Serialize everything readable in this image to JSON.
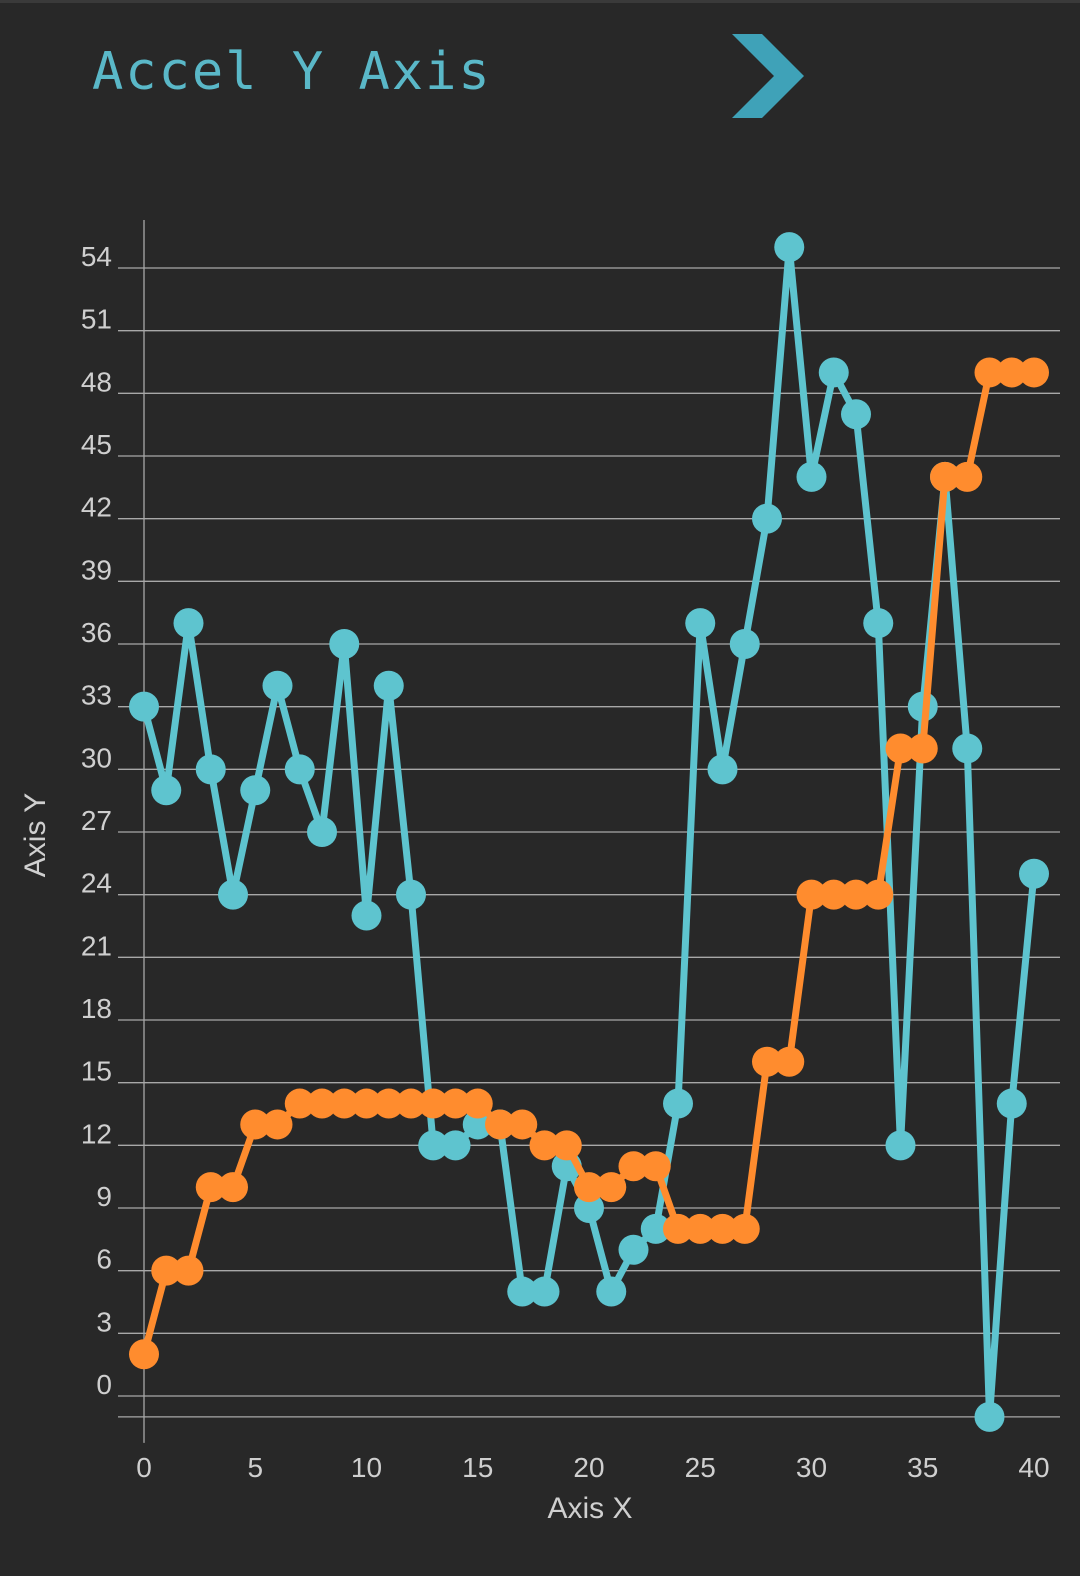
{
  "app": {
    "title": "Accel Y Axis",
    "next_icon": "chevron-right-icon"
  },
  "colors": {
    "background": "#282828",
    "accent": "#5ab8c8",
    "series_cyan": "#5ec4cf",
    "series_orange": "#ff8c2e",
    "grid": "#a8a8a8",
    "label": "#cfcfcf"
  },
  "chart_data": {
    "type": "line",
    "xlabel": "Axis X",
    "ylabel": "Axis Y",
    "xlim": [
      0,
      40
    ],
    "ylim": [
      -1,
      56
    ],
    "xticks": [
      0,
      5,
      10,
      15,
      20,
      25,
      30,
      35,
      40
    ],
    "yticks": [
      0,
      3,
      6,
      9,
      12,
      15,
      18,
      21,
      24,
      27,
      30,
      33,
      36,
      39,
      42,
      45,
      48,
      51,
      54
    ],
    "grid": true,
    "x": [
      0,
      1,
      2,
      3,
      4,
      5,
      6,
      7,
      8,
      9,
      10,
      11,
      12,
      13,
      14,
      15,
      16,
      17,
      18,
      19,
      20,
      21,
      22,
      23,
      24,
      25,
      26,
      27,
      28,
      29,
      30,
      31,
      32,
      33,
      34,
      35,
      36,
      37,
      38,
      39,
      40
    ],
    "series": [
      {
        "color": "#5ec4cf",
        "values": [
          33,
          29,
          37,
          30,
          24,
          29,
          34,
          30,
          27,
          36,
          23,
          34,
          24,
          12,
          12,
          13,
          13,
          5,
          5,
          11,
          9,
          5,
          7,
          8,
          14,
          37,
          30,
          36,
          42,
          55,
          44,
          49,
          47,
          37,
          12,
          33,
          44,
          31,
          -1,
          14,
          25
        ]
      },
      {
        "color": "#ff8c2e",
        "values": [
          2,
          6,
          6,
          10,
          10,
          13,
          13,
          14,
          14,
          14,
          14,
          14,
          14,
          14,
          14,
          14,
          13,
          13,
          12,
          12,
          10,
          10,
          11,
          11,
          8,
          8,
          8,
          8,
          16,
          16,
          24,
          24,
          24,
          24,
          31,
          31,
          44,
          44,
          49,
          49,
          49
        ]
      }
    ]
  }
}
